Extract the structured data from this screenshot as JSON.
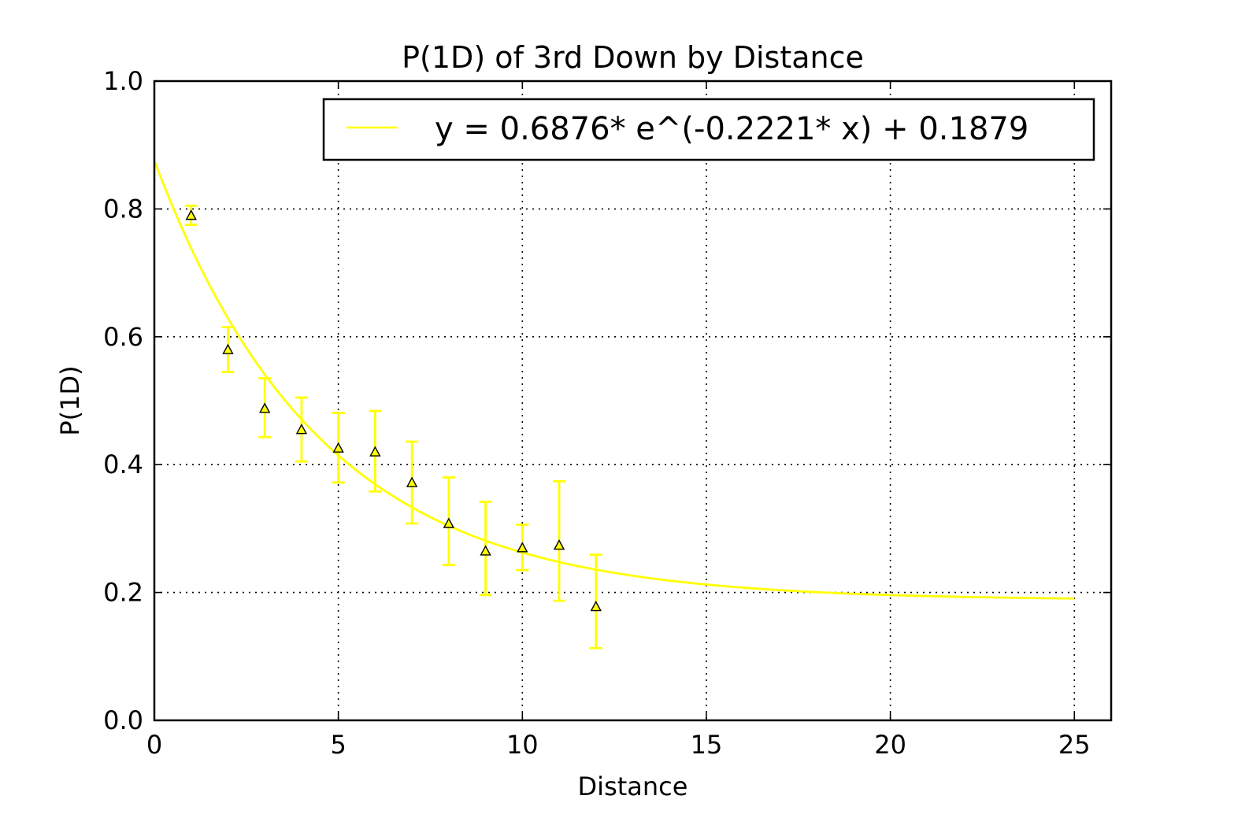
{
  "chart_data": {
    "type": "scatter",
    "title": "P(1D) of 3rd Down by Distance",
    "xlabel": "Distance",
    "ylabel": "P(1D)",
    "xlim": [
      0,
      26
    ],
    "ylim": [
      0.0,
      1.0
    ],
    "x_ticks": [
      0,
      5,
      10,
      15,
      20,
      25
    ],
    "x_tick_labels": [
      "0",
      "5",
      "10",
      "15",
      "20",
      "25"
    ],
    "y_ticks": [
      0.0,
      0.2,
      0.4,
      0.6,
      0.8,
      1.0
    ],
    "y_tick_labels": [
      "0.0",
      "0.2",
      "0.4",
      "0.6",
      "0.8",
      "1.0"
    ],
    "grid": true,
    "legend_position": "top-right",
    "color": "#ffff00",
    "points": [
      {
        "x": 1,
        "y": 0.79,
        "err_low": 0.775,
        "err_high": 0.805
      },
      {
        "x": 2,
        "y": 0.58,
        "err_low": 0.545,
        "err_high": 0.615
      },
      {
        "x": 3,
        "y": 0.488,
        "err_low": 0.443,
        "err_high": 0.535
      },
      {
        "x": 4,
        "y": 0.455,
        "err_low": 0.405,
        "err_high": 0.505
      },
      {
        "x": 5,
        "y": 0.426,
        "err_low": 0.372,
        "err_high": 0.481
      },
      {
        "x": 6,
        "y": 0.42,
        "err_low": 0.358,
        "err_high": 0.484
      },
      {
        "x": 7,
        "y": 0.372,
        "err_low": 0.308,
        "err_high": 0.436
      },
      {
        "x": 8,
        "y": 0.308,
        "err_low": 0.243,
        "err_high": 0.38
      },
      {
        "x": 9,
        "y": 0.265,
        "err_low": 0.196,
        "err_high": 0.342
      },
      {
        "x": 10,
        "y": 0.27,
        "err_low": 0.235,
        "err_high": 0.306
      },
      {
        "x": 11,
        "y": 0.274,
        "err_low": 0.187,
        "err_high": 0.374
      },
      {
        "x": 12,
        "y": 0.178,
        "err_low": 0.113,
        "err_high": 0.259
      }
    ],
    "fit": {
      "label": "y = 0.6876* e^(-0.2221* x) + 0.1879",
      "a": 0.6876,
      "b": 0.2221,
      "c": 0.1879,
      "x_range": [
        0,
        25
      ]
    }
  }
}
